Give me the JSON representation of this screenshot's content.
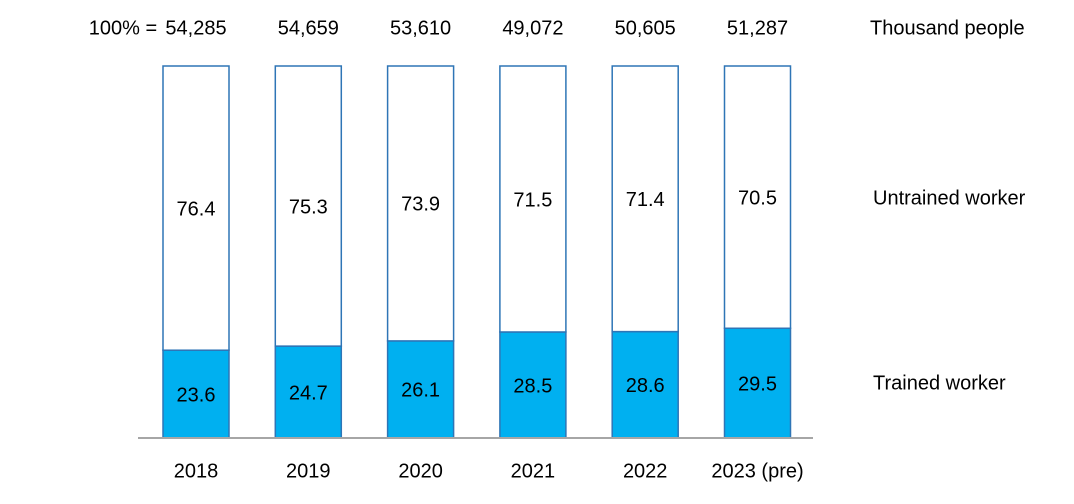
{
  "chart_data": {
    "type": "stacked_bar",
    "categories": [
      "2018",
      "2019",
      "2020",
      "2021",
      "2022",
      "2023 (pre)"
    ],
    "series": [
      {
        "name": "Trained worker",
        "color": "#00b0f0",
        "edgecolor": "#2e75b6",
        "values": [
          23.6,
          24.7,
          26.1,
          28.5,
          28.6,
          29.5
        ]
      },
      {
        "name": "Untrained worker",
        "color": "#ffffff",
        "edgecolor": "#2e75b6",
        "values": [
          76.4,
          75.3,
          73.9,
          71.5,
          71.4,
          70.5
        ]
      }
    ],
    "ylim": [
      0,
      100
    ],
    "totals": {
      "label": "100% =",
      "unit": "Thousand people",
      "values": [
        54285,
        54659,
        53610,
        49072,
        50605,
        51287
      ],
      "value_labels": [
        "54,285",
        "54,659",
        "53,610",
        "49,072",
        "50,605",
        "51,287"
      ]
    }
  }
}
